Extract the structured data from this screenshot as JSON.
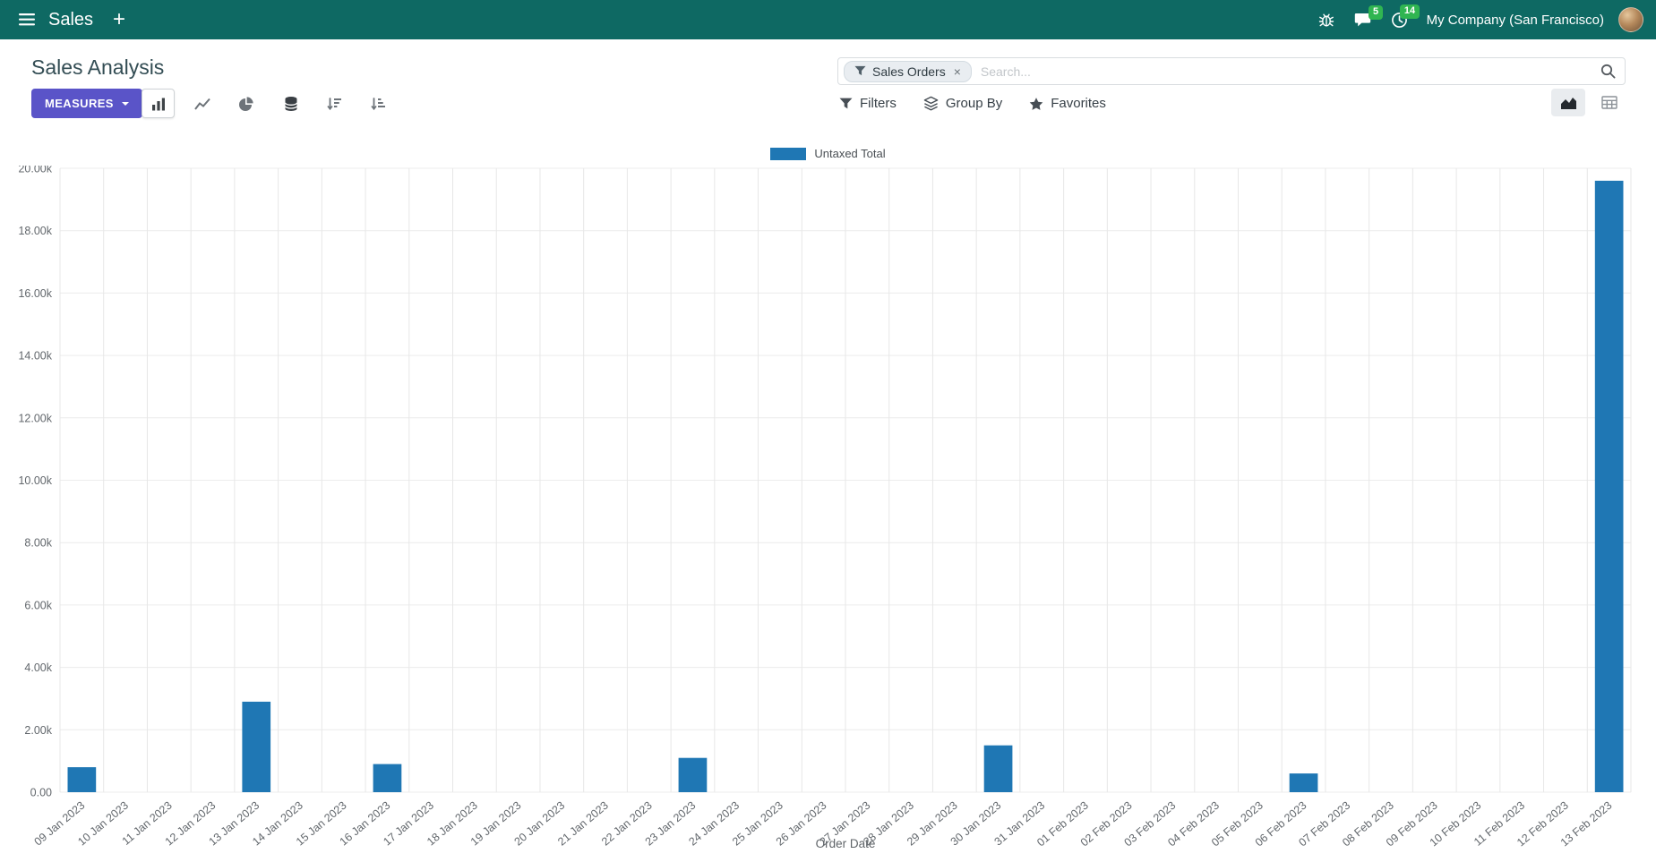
{
  "navbar": {
    "app_name": "Sales",
    "plus_label": "+",
    "message_count": "5",
    "activity_count": "14",
    "company": "My Company (San Francisco)"
  },
  "header": {
    "title": "Sales Analysis",
    "search": {
      "facet_label": "Sales Orders",
      "facet_remove": "×",
      "placeholder": "Search..."
    }
  },
  "toolbar": {
    "measures_label": "MEASURES",
    "filters_label": "Filters",
    "group_by_label": "Group By",
    "favorites_label": "Favorites"
  },
  "chart_data": {
    "type": "bar",
    "legend": [
      "Untaxed Total"
    ],
    "legend_position": "top",
    "series_color": "#1F77B4",
    "xlabel": "Order Date",
    "ylabel": "",
    "ylim": [
      0,
      20000
    ],
    "grid": true,
    "ytick_values": [
      0,
      2000,
      4000,
      6000,
      8000,
      10000,
      12000,
      14000,
      16000,
      18000,
      20000
    ],
    "ytick_labels": [
      "0.00",
      "2.00k",
      "4.00k",
      "6.00k",
      "8.00k",
      "10.00k",
      "12.00k",
      "14.00k",
      "16.00k",
      "18.00k",
      "20.00k"
    ],
    "categories": [
      "09 Jan 2023",
      "10 Jan 2023",
      "11 Jan 2023",
      "12 Jan 2023",
      "13 Jan 2023",
      "14 Jan 2023",
      "15 Jan 2023",
      "16 Jan 2023",
      "17 Jan 2023",
      "18 Jan 2023",
      "19 Jan 2023",
      "20 Jan 2023",
      "21 Jan 2023",
      "22 Jan 2023",
      "23 Jan 2023",
      "24 Jan 2023",
      "25 Jan 2023",
      "26 Jan 2023",
      "27 Jan 2023",
      "28 Jan 2023",
      "29 Jan 2023",
      "30 Jan 2023",
      "31 Jan 2023",
      "01 Feb 2023",
      "02 Feb 2023",
      "03 Feb 2023",
      "04 Feb 2023",
      "05 Feb 2023",
      "06 Feb 2023",
      "07 Feb 2023",
      "08 Feb 2023",
      "09 Feb 2023",
      "10 Feb 2023",
      "11 Feb 2023",
      "12 Feb 2023",
      "13 Feb 2023"
    ],
    "values": [
      800,
      0,
      0,
      0,
      2900,
      0,
      0,
      900,
      0,
      0,
      0,
      0,
      0,
      0,
      1100,
      0,
      0,
      0,
      0,
      0,
      0,
      1500,
      0,
      0,
      0,
      0,
      0,
      0,
      600,
      0,
      0,
      0,
      0,
      0,
      0,
      19600
    ]
  }
}
